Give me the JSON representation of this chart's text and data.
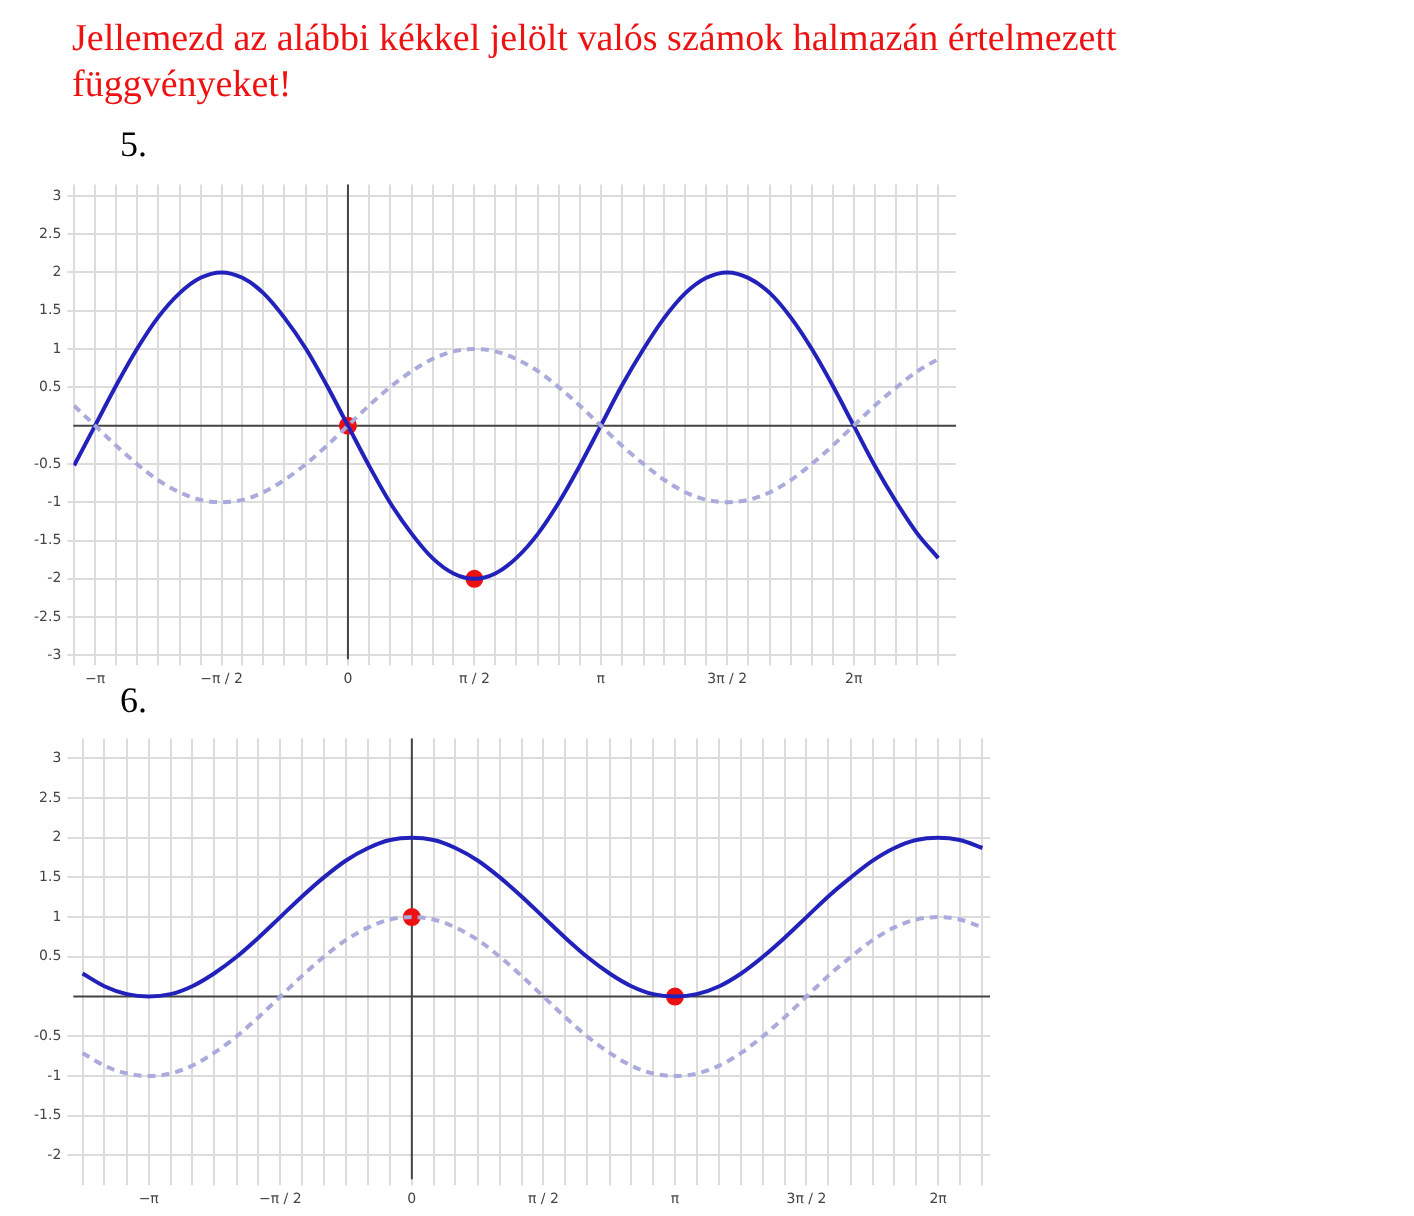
{
  "chart_data": [
    {
      "type": "line",
      "title": "Jellemezd az alábbi kékkel jelölt valós számok halmazán értelmezett függvényeket!",
      "subtitle": "5.",
      "x": [
        -3.4,
        -3.14,
        -2.88,
        -2.62,
        -2.36,
        -2.09,
        -1.83,
        -1.57,
        -1.31,
        -1.05,
        -0.79,
        -0.52,
        -0.26,
        0,
        0.26,
        0.52,
        0.79,
        1.05,
        1.31,
        1.57,
        1.83,
        2.09,
        2.36,
        2.62,
        2.88,
        3.14,
        3.4,
        3.67,
        3.93,
        4.19,
        4.45,
        4.71,
        4.97,
        5.24,
        5.5,
        5.76,
        6.02,
        6.28,
        6.54,
        6.81,
        7.07,
        7.33
      ],
      "xlim": [
        -3.41,
        7.55
      ],
      "ylim": [
        -3.05,
        3.15
      ],
      "xticks": [
        {
          "value": -3.4,
          "label": null
        },
        {
          "value": -3.14,
          "label": "−π"
        },
        {
          "value": -2.88,
          "label": null
        },
        {
          "value": -2.62,
          "label": null
        },
        {
          "value": -2.36,
          "label": null
        },
        {
          "value": -2.09,
          "label": null
        },
        {
          "value": -1.83,
          "label": null
        },
        {
          "value": -1.57,
          "label": "−π / 2"
        },
        {
          "value": -1.31,
          "label": null
        },
        {
          "value": -1.05,
          "label": null
        },
        {
          "value": -0.79,
          "label": null
        },
        {
          "value": -0.52,
          "label": null
        },
        {
          "value": -0.26,
          "label": null
        },
        {
          "value": 0,
          "label": "0"
        },
        {
          "value": 0.26,
          "label": null
        },
        {
          "value": 0.52,
          "label": null
        },
        {
          "value": 0.79,
          "label": null
        },
        {
          "value": 1.05,
          "label": null
        },
        {
          "value": 1.31,
          "label": null
        },
        {
          "value": 1.57,
          "label": "π / 2"
        },
        {
          "value": 1.83,
          "label": null
        },
        {
          "value": 2.09,
          "label": null
        },
        {
          "value": 2.36,
          "label": null
        },
        {
          "value": 2.62,
          "label": null
        },
        {
          "value": 2.88,
          "label": null
        },
        {
          "value": 3.14,
          "label": "π"
        },
        {
          "value": 3.4,
          "label": null
        },
        {
          "value": 3.67,
          "label": null
        },
        {
          "value": 3.93,
          "label": null
        },
        {
          "value": 4.19,
          "label": null
        },
        {
          "value": 4.45,
          "label": null
        },
        {
          "value": 4.71,
          "label": "3π / 2"
        },
        {
          "value": 4.97,
          "label": null
        },
        {
          "value": 5.24,
          "label": null
        },
        {
          "value": 5.5,
          "label": null
        },
        {
          "value": 5.76,
          "label": null
        },
        {
          "value": 6.02,
          "label": null
        },
        {
          "value": 6.28,
          "label": "2π"
        },
        {
          "value": 6.54,
          "label": null
        },
        {
          "value": 6.81,
          "label": null
        },
        {
          "value": 7.07,
          "label": null
        },
        {
          "value": 7.33,
          "label": null
        }
      ],
      "yticks": [
        -3,
        -2.5,
        -2,
        -1.5,
        -1,
        -0.5,
        0.5,
        1,
        1.5,
        2,
        2.5,
        3
      ],
      "grid": true,
      "legend": false,
      "marker": "none",
      "series": [
        {
          "type": "line",
          "color": "#aaaadd",
          "line_style": "dashed",
          "values": [
            0.26,
            0,
            -0.26,
            -0.5,
            -0.71,
            -0.87,
            -0.97,
            -1,
            -0.97,
            -0.87,
            -0.71,
            -0.5,
            -0.26,
            0,
            0.26,
            0.5,
            0.71,
            0.87,
            0.97,
            1,
            0.97,
            0.87,
            0.71,
            0.5,
            0.26,
            0,
            -0.26,
            -0.5,
            -0.71,
            -0.87,
            -0.97,
            -1,
            -0.97,
            -0.87,
            -0.71,
            -0.5,
            -0.26,
            0,
            0.26,
            0.5,
            0.71,
            0.87
          ]
        },
        {
          "type": "line",
          "color": "#2222bb",
          "line_style": "solid",
          "values": [
            -0.52,
            0,
            0.52,
            1,
            1.41,
            1.73,
            1.93,
            2,
            1.93,
            1.73,
            1.41,
            1,
            0.52,
            0,
            -0.52,
            -1,
            -1.41,
            -1.73,
            -1.93,
            -2,
            -1.93,
            -1.73,
            -1.41,
            -1,
            -0.52,
            0,
            0.52,
            1,
            1.41,
            1.73,
            1.93,
            2,
            1.93,
            1.73,
            1.41,
            1,
            0.52,
            0,
            -0.52,
            -1,
            -1.41,
            -1.73
          ]
        },
        {
          "type": "scatter",
          "color": "#ee1111",
          "marker": "circle",
          "x": [
            0,
            1.57
          ],
          "values": [
            0,
            -2
          ]
        }
      ]
    },
    {
      "type": "line",
      "title": "6.",
      "x": [
        -3.93,
        -3.67,
        -3.4,
        -3.14,
        -2.88,
        -2.62,
        -2.36,
        -2.09,
        -1.83,
        -1.57,
        -1.31,
        -1.05,
        -0.79,
        -0.52,
        -0.26,
        0,
        0.26,
        0.52,
        0.79,
        1.05,
        1.31,
        1.57,
        1.83,
        2.09,
        2.36,
        2.62,
        2.88,
        3.14,
        3.4,
        3.67,
        3.93,
        4.19,
        4.45,
        4.71,
        4.97,
        5.24,
        5.5,
        5.76,
        6.02,
        6.28,
        6.54,
        6.81
      ],
      "xlim": [
        -4.04,
        6.9
      ],
      "ylim": [
        -2.3,
        3.25
      ],
      "xticks": [
        {
          "value": -3.93,
          "label": null
        },
        {
          "value": -3.67,
          "label": null
        },
        {
          "value": -3.4,
          "label": null
        },
        {
          "value": -3.14,
          "label": "−π"
        },
        {
          "value": -2.88,
          "label": null
        },
        {
          "value": -2.62,
          "label": null
        },
        {
          "value": -2.36,
          "label": null
        },
        {
          "value": -2.09,
          "label": null
        },
        {
          "value": -1.83,
          "label": null
        },
        {
          "value": -1.57,
          "label": "−π / 2"
        },
        {
          "value": -1.31,
          "label": null
        },
        {
          "value": -1.05,
          "label": null
        },
        {
          "value": -0.79,
          "label": null
        },
        {
          "value": -0.52,
          "label": null
        },
        {
          "value": -0.26,
          "label": null
        },
        {
          "value": 0,
          "label": "0"
        },
        {
          "value": 0.26,
          "label": null
        },
        {
          "value": 0.52,
          "label": null
        },
        {
          "value": 0.79,
          "label": null
        },
        {
          "value": 1.05,
          "label": null
        },
        {
          "value": 1.31,
          "label": null
        },
        {
          "value": 1.57,
          "label": "π / 2"
        },
        {
          "value": 1.83,
          "label": null
        },
        {
          "value": 2.09,
          "label": null
        },
        {
          "value": 2.36,
          "label": null
        },
        {
          "value": 2.62,
          "label": null
        },
        {
          "value": 2.88,
          "label": null
        },
        {
          "value": 3.14,
          "label": "π"
        },
        {
          "value": 3.4,
          "label": null
        },
        {
          "value": 3.67,
          "label": null
        },
        {
          "value": 3.93,
          "label": null
        },
        {
          "value": 4.19,
          "label": null
        },
        {
          "value": 4.45,
          "label": null
        },
        {
          "value": 4.71,
          "label": "3π / 2"
        },
        {
          "value": 4.97,
          "label": null
        },
        {
          "value": 5.24,
          "label": null
        },
        {
          "value": 5.5,
          "label": null
        },
        {
          "value": 5.76,
          "label": null
        },
        {
          "value": 6.02,
          "label": null
        },
        {
          "value": 6.28,
          "label": "2π"
        },
        {
          "value": 6.54,
          "label": null
        },
        {
          "value": 6.81,
          "label": null
        }
      ],
      "yticks": [
        -2,
        -1.5,
        -1,
        -0.5,
        0.5,
        1,
        1.5,
        2,
        2.5,
        3
      ],
      "grid": true,
      "legend": false,
      "marker": "none",
      "series": [
        {
          "type": "line",
          "color": "#aaaadd",
          "line_style": "dashed",
          "values": [
            -0.71,
            -0.87,
            -0.97,
            -1,
            -0.97,
            -0.87,
            -0.71,
            -0.5,
            -0.26,
            0,
            0.26,
            0.5,
            0.71,
            0.87,
            0.97,
            1,
            0.97,
            0.87,
            0.71,
            0.5,
            0.26,
            0,
            -0.26,
            -0.5,
            -0.71,
            -0.87,
            -0.97,
            -1,
            -0.97,
            -0.87,
            -0.71,
            -0.5,
            -0.26,
            0,
            0.26,
            0.5,
            0.71,
            0.87,
            0.97,
            1,
            0.97,
            0.87
          ]
        },
        {
          "type": "line",
          "color": "#2222bb",
          "line_style": "solid",
          "values": [
            0.29,
            0.13,
            0.03,
            0,
            0.03,
            0.13,
            0.29,
            0.5,
            0.74,
            1,
            1.26,
            1.5,
            1.71,
            1.87,
            1.97,
            2,
            1.97,
            1.87,
            1.71,
            1.5,
            1.26,
            1,
            0.74,
            0.5,
            0.29,
            0.13,
            0.03,
            0,
            0.03,
            0.13,
            0.29,
            0.5,
            0.74,
            1,
            1.26,
            1.5,
            1.71,
            1.87,
            1.97,
            2,
            1.97,
            1.87
          ]
        },
        {
          "type": "scatter",
          "color": "#ee1111",
          "marker": "circle",
          "x": [
            0,
            3.14
          ],
          "values": [
            1,
            0
          ]
        }
      ]
    }
  ]
}
